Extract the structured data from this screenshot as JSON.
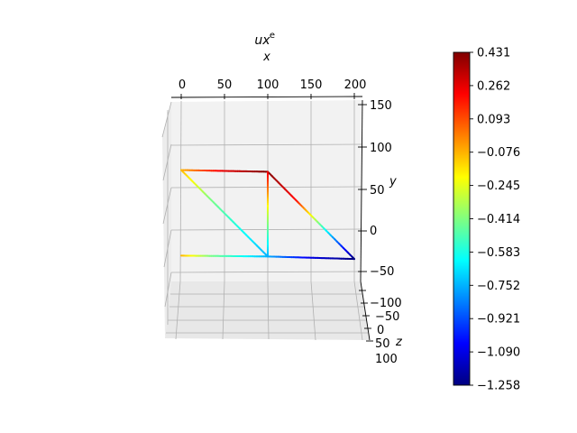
{
  "chart_data": {
    "type": "line",
    "title": "ux",
    "title_superscript": "e",
    "xlabel": "x",
    "ylabel": "y",
    "zlabel": "z",
    "x_ticks": [
      "0",
      "50",
      "100",
      "150",
      "200"
    ],
    "y_ticks": [
      "150",
      "100",
      "50",
      "0",
      "−50"
    ],
    "z_ticks": [
      "−100",
      "−50",
      "0",
      "50",
      "100"
    ],
    "xlim": [
      0,
      200
    ],
    "ylim": [
      -50,
      150
    ],
    "zlim": [
      -100,
      100
    ],
    "grid": true,
    "colorbar": {
      "colormap": "jet",
      "min": -1.258,
      "max": 0.431,
      "ticks": [
        "0.431",
        "0.262",
        "0.093",
        "−0.076",
        "−0.245",
        "−0.414",
        "−0.583",
        "−0.752",
        "−0.921",
        "−1.090",
        "−1.258"
      ]
    },
    "segments": [
      {
        "from": [
          0,
          72
        ],
        "to": [
          100,
          70
        ],
        "values": [
          -0.076,
          0.262,
          0.431
        ]
      },
      {
        "from": [
          100,
          70
        ],
        "to": [
          200,
          -34
        ],
        "values": [
          0.431,
          0.2,
          -0.6,
          -1.258
        ]
      },
      {
        "from": [
          100,
          70
        ],
        "to": [
          100,
          -31
        ],
        "values": [
          0.262,
          -0.3,
          -0.752
        ]
      },
      {
        "from": [
          0,
          72
        ],
        "to": [
          100,
          -31
        ],
        "values": [
          -0.076,
          -0.414,
          -0.583,
          -0.752
        ]
      },
      {
        "from": [
          0,
          -30
        ],
        "to": [
          100,
          -31
        ],
        "values": [
          -0.076,
          -0.414,
          -0.583,
          -0.752
        ]
      },
      {
        "from": [
          100,
          -31
        ],
        "to": [
          200,
          -34
        ],
        "values": [
          -0.752,
          -1.09,
          -1.258
        ]
      }
    ]
  }
}
